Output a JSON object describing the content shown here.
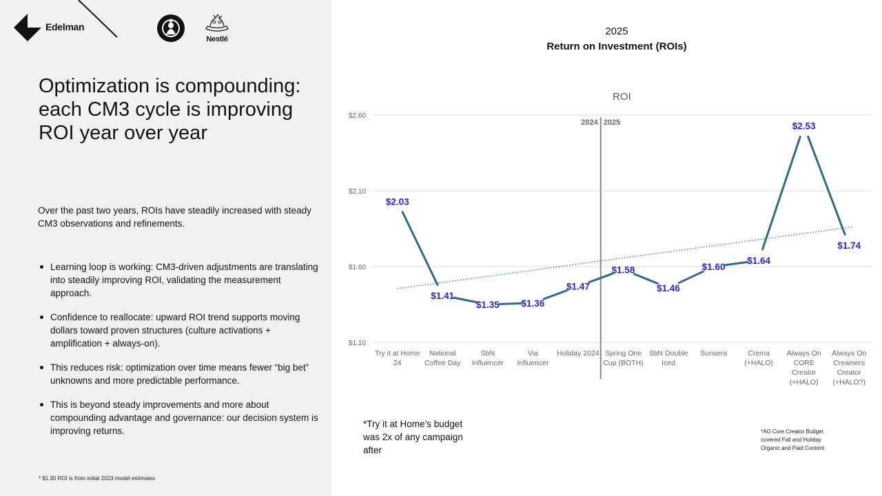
{
  "brands": {
    "edelman": "Edelman",
    "nestle": "Nestlé"
  },
  "headline": "Optimization is compounding: each CM3 cycle is improving ROI year over year",
  "intro": "Over the past two years, ROIs have steadily increased with steady CM3 observations and refinements.",
  "bullets": [
    "Learning loop is working: CM3-driven adjustments are translating into steadily improving ROI, validating the measurement approach.",
    "Confidence to reallocate: upward ROI trend supports moving dollars toward proven structures (culture activations + amplification + always-on).",
    "This reduces risk: optimization over time means fewer “big bet” unknowns and more predictable performance.",
    "This is beyond steady improvements and more about compounding advantage and governance: our decision system is improving returns."
  ],
  "footnote_left": "* $1.30 ROI is from initial 2023 model estimates",
  "chart_header": {
    "year": "2025",
    "title": "Return on Investment (ROIs)"
  },
  "notes": {
    "budget": "*Try it at Home’s budget was 2x of any campaign after",
    "ao": "*AO Core Creator Budget covered Fall and Holiday Organic and Paid Content"
  },
  "chart_data": {
    "type": "line",
    "title": "ROI",
    "categories": [
      [
        "Try it at Home",
        "24"
      ],
      [
        "National",
        "Coffee Day"
      ],
      [
        "SbN",
        "Influencer"
      ],
      [
        "Via",
        "Influencer"
      ],
      [
        "Holiday 2024"
      ],
      [
        "Spring One",
        "Cup (BOTH)"
      ],
      [
        "SbN Double",
        "Iced"
      ],
      [
        "Sunsera"
      ],
      [
        "Crema",
        "(+HALO)"
      ],
      [
        "Always On",
        "CORE",
        "Creator",
        "(+HALO)"
      ],
      [
        "Always On",
        "Creamers",
        "Creator",
        "(+HALO?)"
      ]
    ],
    "series": [
      {
        "values": [
          2.03,
          1.41,
          1.35,
          1.36,
          1.47,
          1.58,
          1.46,
          1.6,
          1.64,
          2.53,
          1.74
        ],
        "labels": [
          "$2.03",
          "$1.41",
          "$1.35",
          "$1.36",
          "$1.47",
          "$1.58",
          "$1.46",
          "$1.60",
          "$1.64",
          "$2.53",
          "$1.74"
        ],
        "color": "#2e6b84"
      }
    ],
    "trendline": {
      "from": 1.455,
      "to": 1.863,
      "color": "#4a86a6",
      "style": "dotted"
    },
    "yticks": [
      "$2.60",
      "$2.10",
      "$1.60",
      "$1.10"
    ],
    "ytick_values": [
      2.6,
      2.1,
      1.6,
      1.1
    ],
    "ylim": [
      1.1,
      2.6
    ],
    "divider": {
      "after_category": 4,
      "left_label": "2024",
      "right_label": "2025"
    },
    "label_color": "#2424e6",
    "grid": true
  }
}
